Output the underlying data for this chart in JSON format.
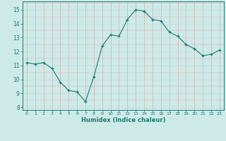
{
  "x": [
    0,
    1,
    2,
    3,
    4,
    5,
    6,
    7,
    8,
    9,
    10,
    11,
    12,
    13,
    14,
    15,
    16,
    17,
    18,
    19,
    20,
    21,
    22,
    23
  ],
  "y": [
    11.2,
    11.1,
    11.2,
    10.8,
    9.8,
    9.2,
    9.1,
    8.4,
    10.2,
    12.4,
    13.2,
    13.1,
    14.3,
    15.0,
    14.9,
    14.3,
    14.2,
    13.4,
    13.1,
    12.5,
    12.2,
    11.7,
    11.8,
    12.1
  ],
  "xlim": [
    -0.5,
    23.5
  ],
  "ylim": [
    7.8,
    15.6
  ],
  "yticks": [
    8,
    9,
    10,
    11,
    12,
    13,
    14,
    15
  ],
  "xticks": [
    0,
    1,
    2,
    3,
    4,
    5,
    6,
    7,
    8,
    9,
    10,
    11,
    12,
    13,
    14,
    15,
    16,
    17,
    18,
    19,
    20,
    21,
    22,
    23
  ],
  "xlabel": "Humidex (Indice chaleur)",
  "line_color": "#1a7a6e",
  "marker": "+",
  "bg_color": "#ceeae8",
  "grid_color_major": "#b8d8d5",
  "grid_color_minor": "#d4eceb"
}
